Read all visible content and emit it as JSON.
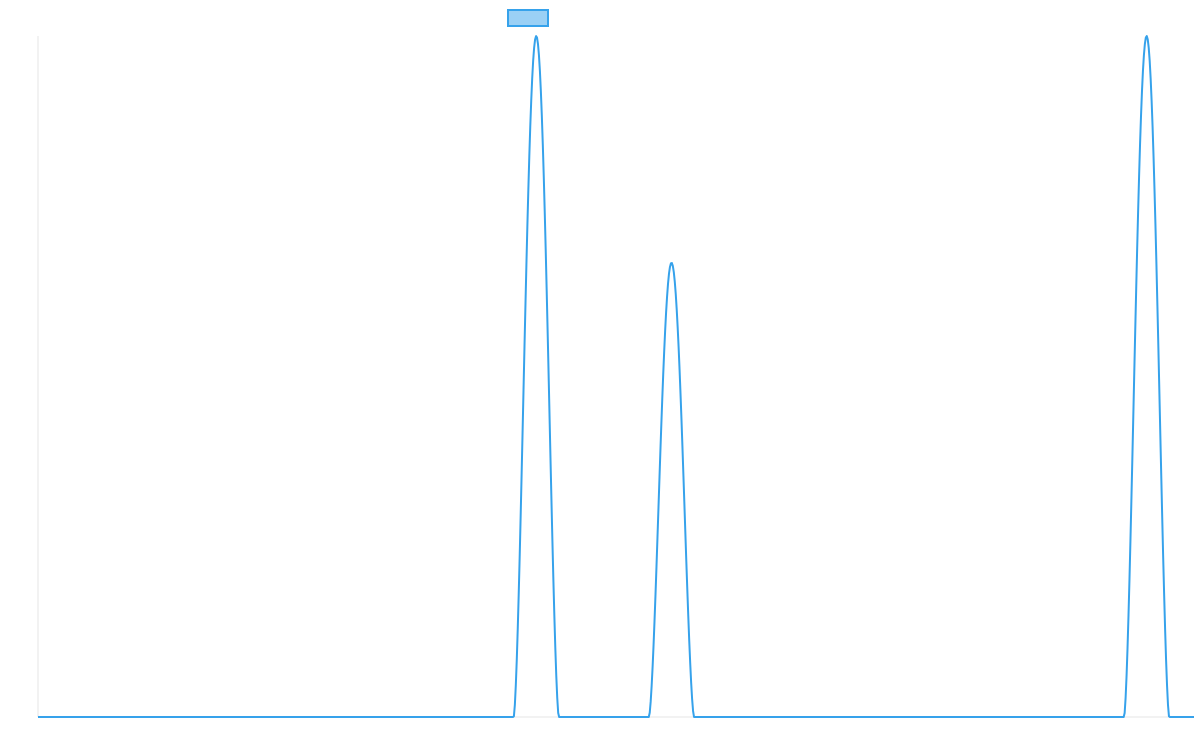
{
  "chart_data": {
    "type": "line",
    "title": "",
    "xlabel": "",
    "ylabel": "",
    "grid": false,
    "legend_position": "top-center",
    "x_domain": [
      0,
      100
    ],
    "ylim": [
      0,
      1
    ],
    "series": [
      {
        "name": "",
        "color": "#36a2eb",
        "fill_color": "#9ad0f5",
        "peaks": [
          {
            "x": 43.1,
            "height": 1.0,
            "half_width": 1.95
          },
          {
            "x": 54.8,
            "height": 0.667,
            "half_width": 1.95
          },
          {
            "x": 95.9,
            "height": 1.0,
            "half_width": 1.95
          }
        ],
        "baseline": 0
      }
    ]
  }
}
